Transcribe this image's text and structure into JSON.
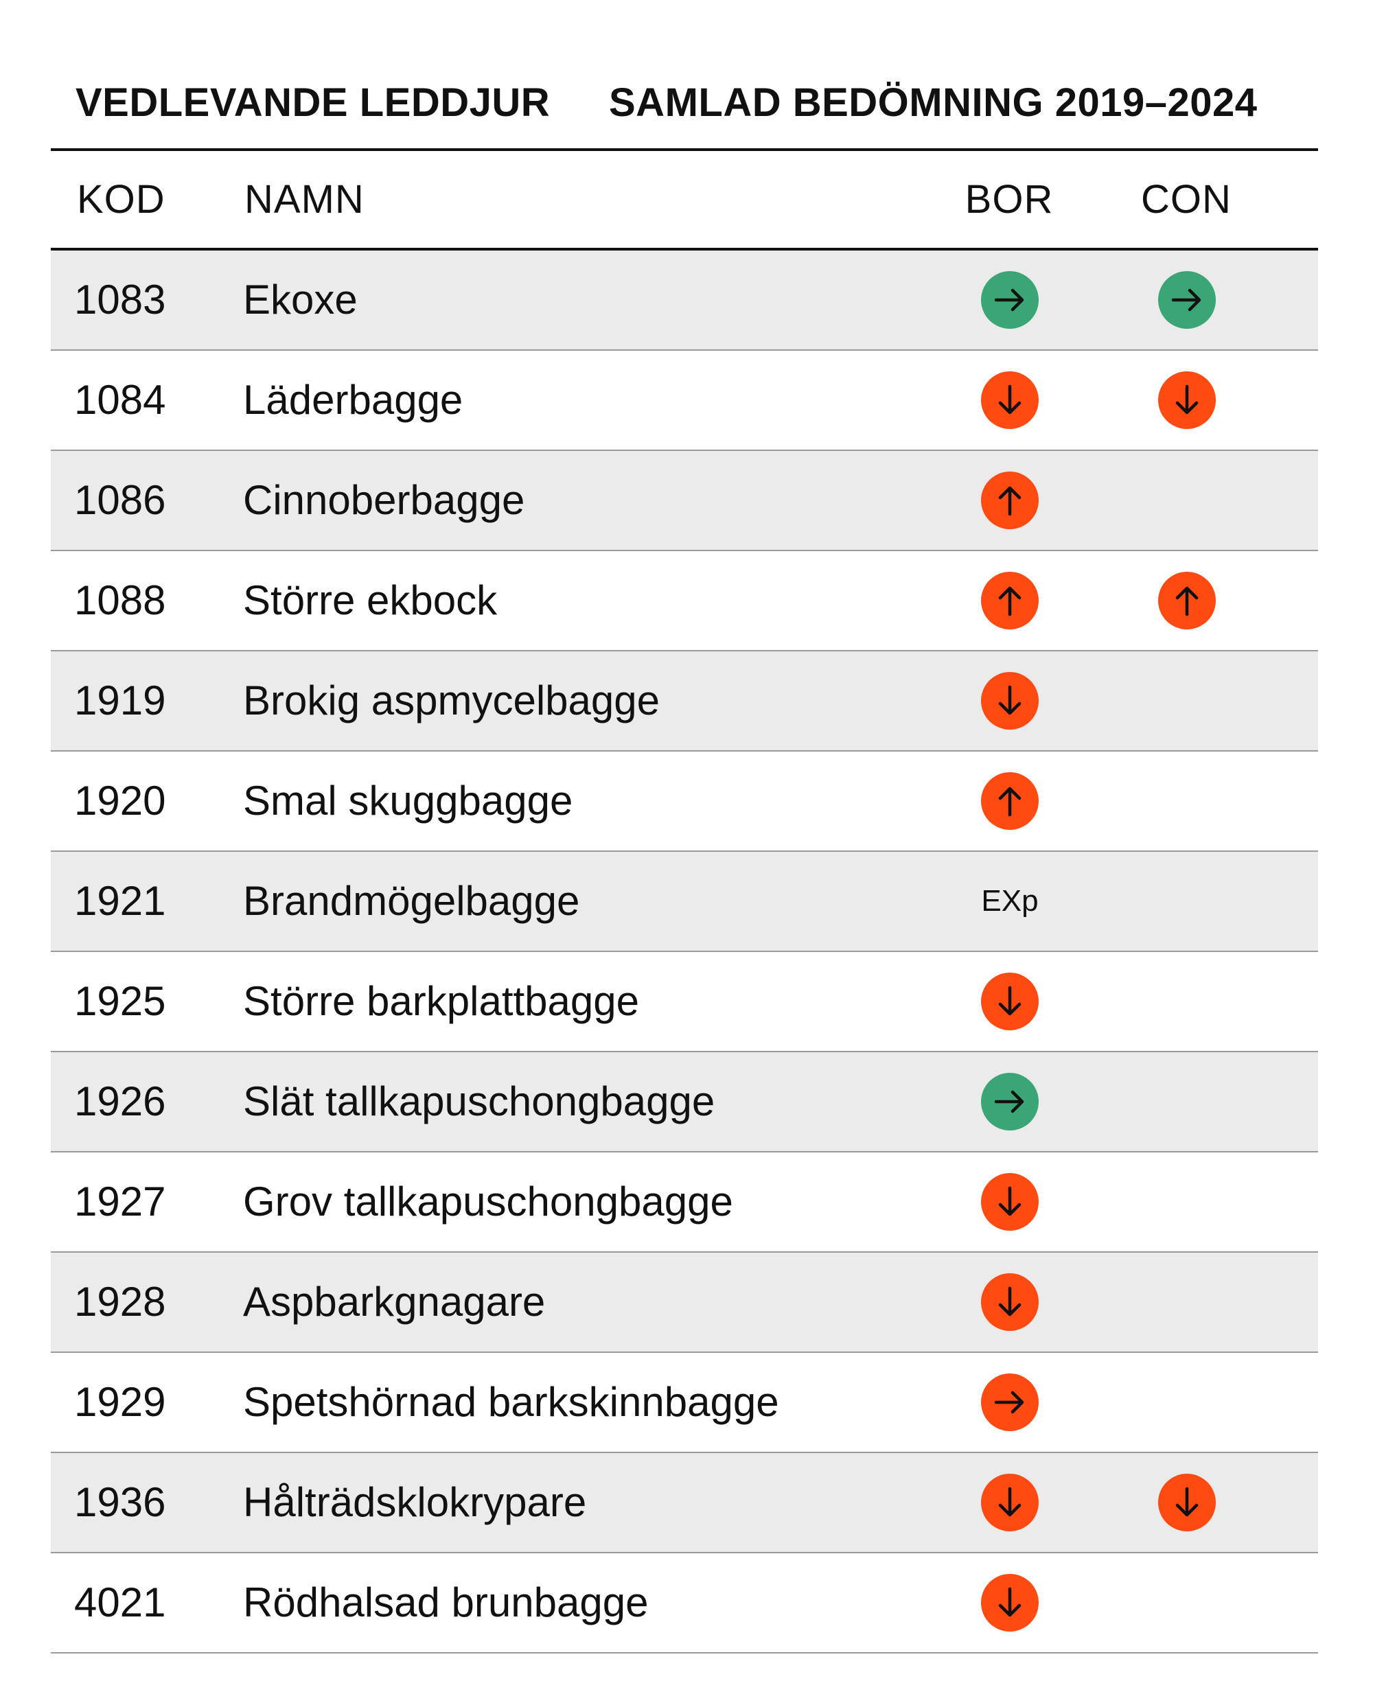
{
  "header": {
    "title_left": "VEDLEVANDE LEDDJUR",
    "title_right": "SAMLAD BEDÖMNING 2019–2024"
  },
  "table": {
    "columns": {
      "kod": "KOD",
      "namn": "NAMN",
      "bor": "BOR",
      "con": "CON"
    },
    "rows": [
      {
        "kod": "1083",
        "namn": "Ekoxe",
        "bor": "right-green",
        "con": "right-green"
      },
      {
        "kod": "1084",
        "namn": "Läderbagge",
        "bor": "down-red",
        "con": "down-red"
      },
      {
        "kod": "1086",
        "namn": "Cinnoberbagge",
        "bor": "up-red",
        "con": ""
      },
      {
        "kod": "1088",
        "namn": "Större ekbock",
        "bor": "up-red",
        "con": "up-red"
      },
      {
        "kod": "1919",
        "namn": "Brokig aspmycelbagge",
        "bor": "down-red",
        "con": ""
      },
      {
        "kod": "1920",
        "namn": "Smal skuggbagge",
        "bor": "up-red",
        "con": ""
      },
      {
        "kod": "1921",
        "namn": "Brandmögelbagge",
        "bor": "EXp",
        "con": ""
      },
      {
        "kod": "1925",
        "namn": "Större barkplattbagge",
        "bor": "down-red",
        "con": ""
      },
      {
        "kod": "1926",
        "namn": "Slät tallkapuschongbagge",
        "bor": "right-green",
        "con": ""
      },
      {
        "kod": "1927",
        "namn": "Grov tallkapuschongbagge",
        "bor": "down-red",
        "con": ""
      },
      {
        "kod": "1928",
        "namn": "Aspbarkgnagare",
        "bor": "down-red",
        "con": ""
      },
      {
        "kod": "1929",
        "namn": "Spetshörnad barkskinnbagge",
        "bor": "right-red",
        "con": ""
      },
      {
        "kod": "1936",
        "namn": "Hålträdsklokrypare",
        "bor": "down-red",
        "con": "down-red"
      },
      {
        "kod": "4021",
        "namn": "Rödhalsad brunbagge",
        "bor": "down-red",
        "con": ""
      }
    ]
  },
  "colors": {
    "green": "#3aa676",
    "red": "#ff4a12",
    "shade": "#ebebeb",
    "rule": "#9a9a9a"
  }
}
